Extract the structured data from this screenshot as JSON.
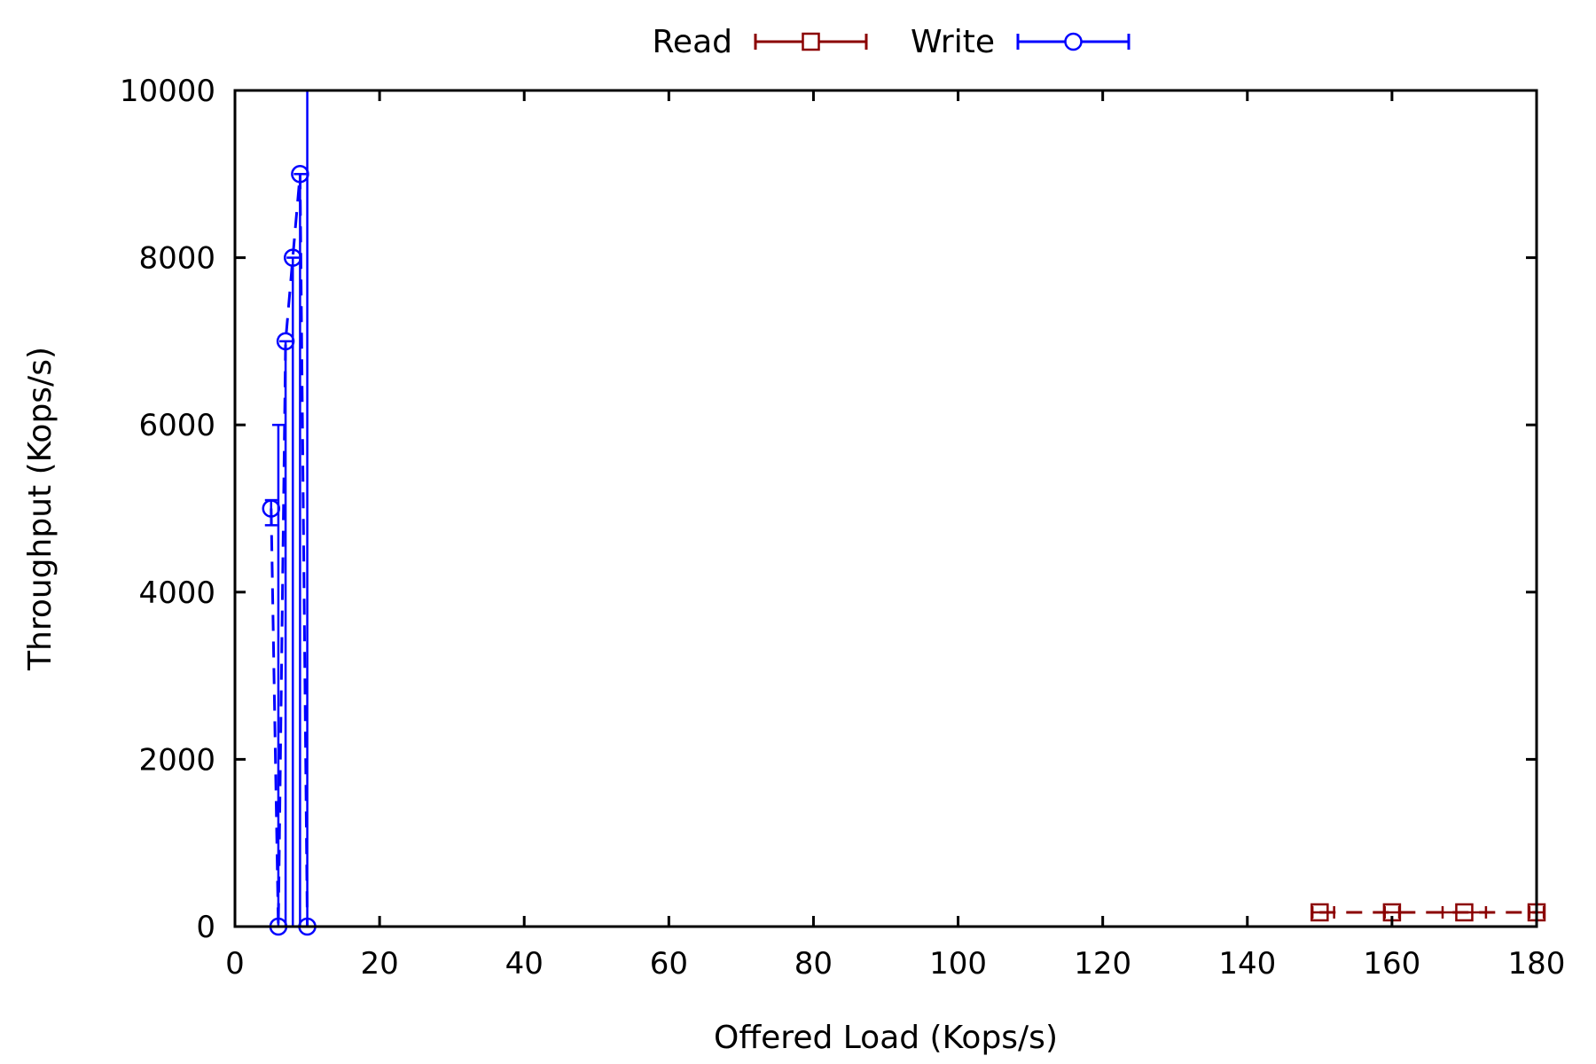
{
  "chart_data": {
    "type": "line",
    "xlabel": "Offered Load (Kops/s)",
    "ylabel": "Throughput (Kops/s)",
    "xlim": [
      0,
      180
    ],
    "ylim": [
      0,
      10000
    ],
    "x_ticks": [
      0,
      20,
      40,
      60,
      80,
      100,
      120,
      140,
      160,
      180
    ],
    "y_ticks": [
      0,
      2000,
      4000,
      6000,
      8000,
      10000
    ],
    "x_tick_labels": [
      "0",
      "20",
      "40",
      "60",
      "80",
      "100",
      "120",
      "140",
      "160",
      "180"
    ],
    "y_tick_labels": [
      "0",
      "2000",
      "4000",
      "6000",
      "8000",
      "10000"
    ],
    "grid": false,
    "legend_position": "top-center",
    "series": [
      {
        "name": "Read",
        "color": "#8b0000",
        "marker": "square",
        "line_style": "dashed",
        "points": [
          {
            "x": 150,
            "y": 170,
            "xerr": [
              149,
              152
            ]
          },
          {
            "x": 160,
            "y": 170,
            "xerr": [
              159,
              161
            ]
          },
          {
            "x": 170,
            "y": 170,
            "xerr": [
              167,
              173
            ]
          },
          {
            "x": 180,
            "y": 170,
            "xerr": [
              179,
              181
            ]
          }
        ]
      },
      {
        "name": "Write",
        "color": "#0000ff",
        "marker": "circle",
        "line_style": "dashed",
        "points": [
          {
            "x": 5,
            "y": 5000,
            "yerr": [
              4800,
              5100
            ]
          },
          {
            "x": 6,
            "y": 0,
            "yerr": [
              0,
              6000
            ]
          },
          {
            "x": 7,
            "y": 7000,
            "yerr": [
              0,
              7000
            ]
          },
          {
            "x": 8,
            "y": 8000,
            "yerr": [
              0,
              8000
            ]
          },
          {
            "x": 9,
            "y": 9000,
            "yerr": [
              0,
              9000
            ]
          },
          {
            "x": 10,
            "y": 0,
            "yerr": [
              0,
              10000
            ]
          }
        ]
      }
    ]
  }
}
